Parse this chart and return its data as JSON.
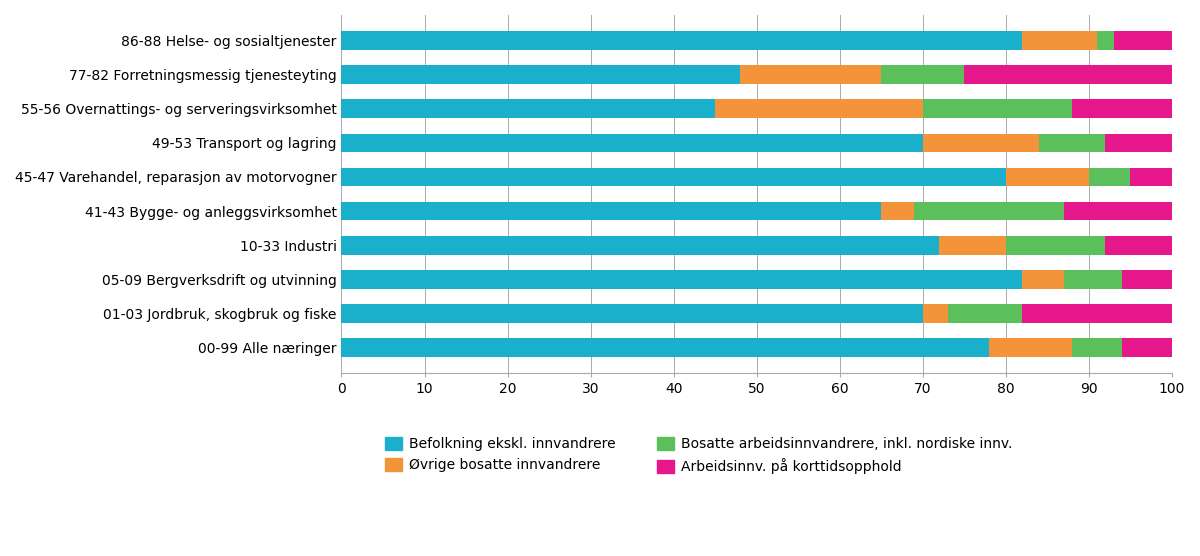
{
  "categories": [
    "86-88 Helse- og sosialtjenester",
    "77-82 Forretningsmessig tjenesteyting",
    "55-56 Overnattings- og serveringsvirksomhet",
    "49-53 Transport og lagring",
    "45-47 Varehandel, reparasjon av motorvogner",
    "41-43 Bygge- og anleggsvirksomhet",
    "10-33 Industri",
    "05-09 Bergverksdrift og utvinning",
    "01-03 Jordbruk, skogbruk og fiske",
    "00-99 Alle næringer"
  ],
  "series": {
    "Befolkning ekskl. innvandrere": [
      82,
      48,
      45,
      70,
      80,
      65,
      72,
      82,
      70,
      78
    ],
    "Øvrige bosatte innvandrere": [
      9,
      17,
      25,
      14,
      10,
      4,
      8,
      5,
      3,
      10
    ],
    "Bosatte arbeidsinnvandrere, inkl. nordiske innv.": [
      2,
      10,
      18,
      8,
      5,
      18,
      12,
      7,
      9,
      6
    ],
    "Arbeidsinnv. på korttidsopphold": [
      7,
      25,
      12,
      8,
      5,
      13,
      8,
      6,
      18,
      6
    ]
  },
  "colors": {
    "Befolkning ekskl. innvandrere": "#1ab0cc",
    "Øvrige bosatte innvandrere": "#f4943a",
    "Bosatte arbeidsinnvandrere, inkl. nordiske innv.": "#5bbf5b",
    "Arbeidsinnv. på korttidsopphold": "#e6178a"
  },
  "xlim": [
    0,
    100
  ],
  "xticks": [
    0,
    10,
    20,
    30,
    40,
    50,
    60,
    70,
    80,
    90,
    100
  ],
  "background_color": "#ffffff",
  "bar_height": 0.55,
  "legend_order": [
    "Befolkning ekskl. innvandrere",
    "Øvrige bosatte innvandrere",
    "Bosatte arbeidsinnvandrere, inkl. nordiske innv.",
    "Arbeidsinnv. på korttidsopphold"
  ],
  "legend_display_order": [
    0,
    2,
    1,
    3
  ]
}
